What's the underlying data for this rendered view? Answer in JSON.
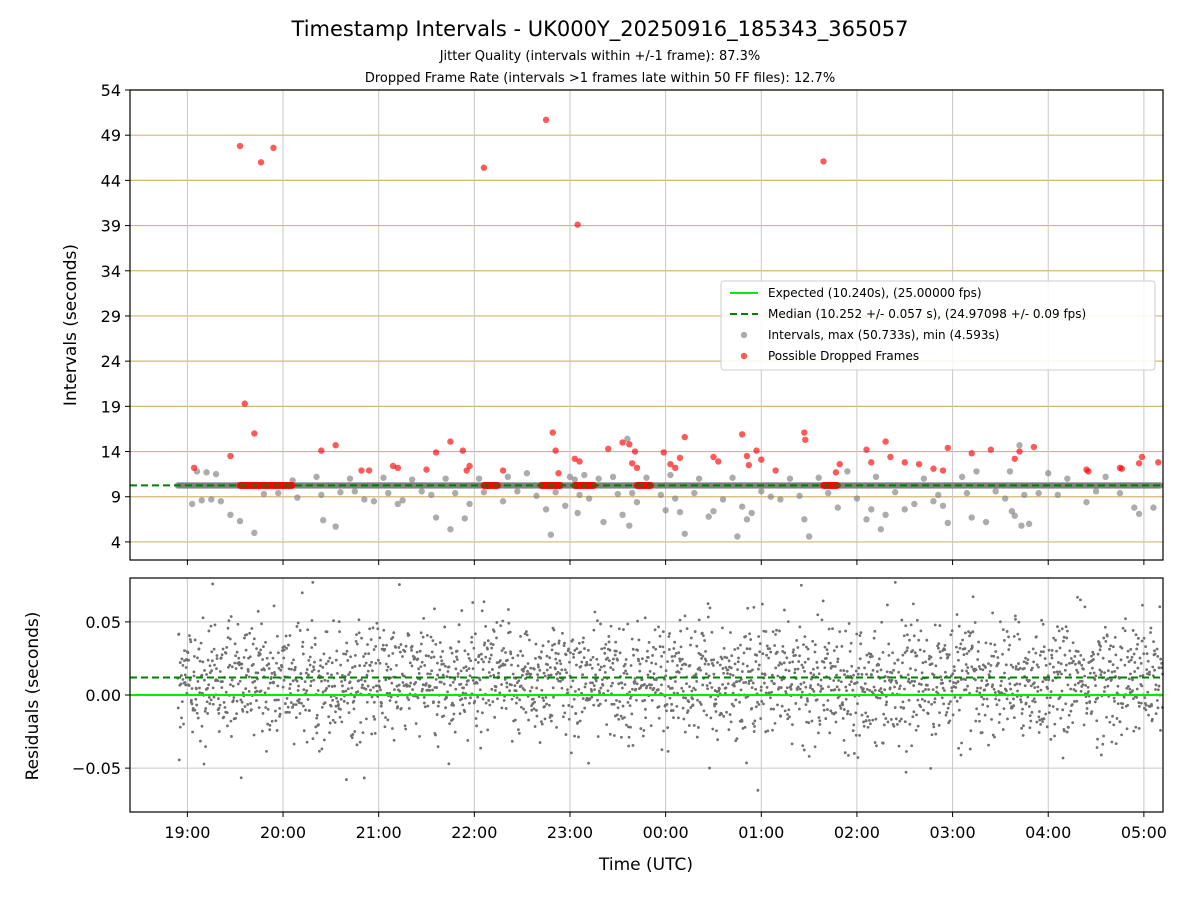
{
  "chart_data": [
    {
      "type": "scatter",
      "title": "Timestamp Intervals - UK000Y_20250916_185343_365057",
      "subtitle_lines": [
        "Jitter Quality (intervals within +/-1 frame): 87.3%",
        "Dropped Frame Rate (intervals >1 frames late within 50 FF files): 12.7%"
      ],
      "ylabel": "Intervals (seconds)",
      "ylim": [
        2,
        54
      ],
      "yticks": [
        4,
        9,
        14,
        19,
        24,
        29,
        34,
        39,
        44,
        49,
        54
      ],
      "xlim_hours": [
        18.4,
        29.2
      ],
      "grid": true,
      "legend_position": "center-right",
      "expected_interval": 10.24,
      "median_interval": 10.252,
      "colors": {
        "expected": "#00ee00",
        "median": "#008000",
        "intervals": "#808080",
        "dropped": "#ff0000",
        "hgrid": "#d4b870",
        "vgrid": "#c8c8c8"
      },
      "legend": [
        {
          "key": "expected",
          "label": "Expected (10.240s), (25.00000 fps)",
          "marker": "line"
        },
        {
          "key": "median",
          "label": "Median (10.252 +/- 0.057 s), (24.97098 +/- 0.09 fps)",
          "marker": "dash"
        },
        {
          "key": "intervals",
          "label": "Intervals, max (50.733s), min (4.593s)",
          "marker": "dot"
        },
        {
          "key": "dropped",
          "label": "Possible Dropped Frames",
          "marker": "dot"
        }
      ],
      "series": [
        {
          "name": "Intervals, max (50.733s), min (4.593s)",
          "points": [
            [
              19.05,
              8.2
            ],
            [
              19.1,
              11.8
            ],
            [
              19.15,
              8.6
            ],
            [
              19.2,
              11.7
            ],
            [
              19.25,
              8.7
            ],
            [
              19.3,
              11.5
            ],
            [
              19.35,
              8.5
            ],
            [
              19.45,
              7.0
            ],
            [
              19.55,
              6.3
            ],
            [
              19.7,
              5.0
            ],
            [
              19.8,
              9.3
            ],
            [
              19.95,
              9.4
            ],
            [
              20.1,
              10.8
            ],
            [
              20.15,
              8.9
            ],
            [
              20.35,
              11.2
            ],
            [
              20.4,
              9.2
            ],
            [
              20.42,
              6.4
            ],
            [
              20.55,
              5.7
            ],
            [
              20.6,
              9.5
            ],
            [
              20.7,
              11.0
            ],
            [
              20.75,
              9.6
            ],
            [
              20.85,
              8.7
            ],
            [
              20.95,
              8.5
            ],
            [
              21.05,
              11.1
            ],
            [
              21.1,
              9.4
            ],
            [
              21.2,
              8.2
            ],
            [
              21.25,
              8.6
            ],
            [
              21.35,
              10.9
            ],
            [
              21.45,
              9.6
            ],
            [
              21.55,
              9.2
            ],
            [
              21.6,
              6.7
            ],
            [
              21.7,
              11.0
            ],
            [
              21.75,
              5.4
            ],
            [
              21.8,
              9.4
            ],
            [
              21.9,
              6.6
            ],
            [
              21.95,
              8.2
            ],
            [
              22.05,
              11.0
            ],
            [
              22.1,
              9.5
            ],
            [
              22.3,
              8.5
            ],
            [
              22.35,
              11.2
            ],
            [
              22.45,
              9.6
            ],
            [
              22.55,
              11.6
            ],
            [
              22.65,
              9.1
            ],
            [
              22.75,
              7.6
            ],
            [
              22.8,
              4.8
            ],
            [
              22.85,
              9.5
            ],
            [
              22.95,
              8.0
            ],
            [
              23.0,
              11.2
            ],
            [
              23.05,
              10.9
            ],
            [
              23.08,
              7.2
            ],
            [
              23.1,
              9.2
            ],
            [
              23.15,
              11.4
            ],
            [
              23.2,
              8.8
            ],
            [
              23.3,
              11.0
            ],
            [
              23.35,
              6.2
            ],
            [
              23.45,
              11.2
            ],
            [
              23.5,
              9.3
            ],
            [
              23.55,
              7.0
            ],
            [
              23.6,
              15.4
            ],
            [
              23.62,
              5.8
            ],
            [
              23.65,
              9.4
            ],
            [
              23.7,
              8.4
            ],
            [
              23.8,
              11.1
            ],
            [
              23.95,
              9.2
            ],
            [
              24.0,
              7.5
            ],
            [
              24.05,
              11.4
            ],
            [
              24.1,
              8.8
            ],
            [
              24.15,
              7.3
            ],
            [
              24.2,
              4.9
            ],
            [
              24.3,
              9.4
            ],
            [
              24.35,
              11.0
            ],
            [
              24.45,
              6.8
            ],
            [
              24.5,
              7.4
            ],
            [
              24.6,
              8.7
            ],
            [
              24.7,
              11.1
            ],
            [
              24.75,
              4.6
            ],
            [
              24.8,
              7.9
            ],
            [
              24.85,
              6.5
            ],
            [
              24.9,
              7.2
            ],
            [
              25.0,
              9.6
            ],
            [
              25.1,
              9.0
            ],
            [
              25.2,
              8.7
            ],
            [
              25.3,
              11.0
            ],
            [
              25.4,
              9.1
            ],
            [
              25.45,
              6.5
            ],
            [
              25.5,
              4.6
            ],
            [
              25.6,
              11.1
            ],
            [
              25.7,
              9.4
            ],
            [
              25.8,
              7.8
            ],
            [
              25.9,
              11.8
            ],
            [
              26.0,
              8.8
            ],
            [
              26.1,
              6.5
            ],
            [
              26.15,
              7.6
            ],
            [
              26.2,
              11.2
            ],
            [
              26.25,
              5.4
            ],
            [
              26.3,
              7.0
            ],
            [
              26.4,
              9.5
            ],
            [
              26.5,
              7.6
            ],
            [
              26.6,
              8.2
            ],
            [
              26.7,
              11.0
            ],
            [
              26.8,
              8.5
            ],
            [
              26.85,
              9.2
            ],
            [
              26.9,
              8.0
            ],
            [
              26.95,
              6.1
            ],
            [
              27.1,
              11.2
            ],
            [
              27.15,
              9.4
            ],
            [
              27.2,
              6.7
            ],
            [
              27.25,
              11.8
            ],
            [
              27.35,
              6.2
            ],
            [
              27.45,
              9.6
            ],
            [
              27.55,
              8.8
            ],
            [
              27.6,
              11.8
            ],
            [
              27.62,
              7.4
            ],
            [
              27.65,
              6.9
            ],
            [
              27.7,
              14.7
            ],
            [
              27.72,
              5.8
            ],
            [
              27.75,
              9.2
            ],
            [
              27.8,
              6.0
            ],
            [
              27.9,
              9.4
            ],
            [
              28.0,
              11.6
            ],
            [
              28.1,
              9.2
            ],
            [
              28.2,
              11.0
            ],
            [
              28.4,
              8.4
            ],
            [
              28.5,
              9.6
            ],
            [
              28.6,
              11.2
            ],
            [
              28.75,
              9.4
            ],
            [
              28.9,
              7.8
            ],
            [
              28.95,
              7.1
            ],
            [
              29.1,
              7.8
            ]
          ]
        },
        {
          "name": "Possible Dropped Frames",
          "points": [
            [
              19.07,
              12.2
            ],
            [
              19.45,
              13.5
            ],
            [
              19.55,
              47.8
            ],
            [
              19.6,
              19.3
            ],
            [
              19.7,
              16.0
            ],
            [
              19.77,
              46.0
            ],
            [
              19.9,
              47.6
            ],
            [
              20.4,
              14.1
            ],
            [
              20.55,
              14.7
            ],
            [
              20.82,
              11.9
            ],
            [
              20.9,
              11.9
            ],
            [
              21.15,
              12.4
            ],
            [
              21.2,
              12.2
            ],
            [
              21.5,
              12.0
            ],
            [
              21.6,
              13.9
            ],
            [
              21.75,
              15.1
            ],
            [
              21.88,
              14.1
            ],
            [
              21.92,
              11.9
            ],
            [
              21.95,
              12.4
            ],
            [
              22.1,
              45.4
            ],
            [
              22.3,
              11.9
            ],
            [
              22.75,
              50.7
            ],
            [
              22.82,
              16.1
            ],
            [
              22.85,
              14.1
            ],
            [
              22.88,
              11.6
            ],
            [
              23.05,
              13.2
            ],
            [
              23.08,
              39.1
            ],
            [
              23.1,
              12.9
            ],
            [
              23.4,
              14.3
            ],
            [
              23.55,
              15.0
            ],
            [
              23.62,
              14.8
            ],
            [
              23.65,
              12.7
            ],
            [
              23.68,
              14.0
            ],
            [
              23.7,
              12.2
            ],
            [
              23.98,
              13.9
            ],
            [
              24.05,
              12.6
            ],
            [
              24.1,
              12.2
            ],
            [
              24.15,
              13.3
            ],
            [
              24.2,
              15.6
            ],
            [
              24.5,
              13.4
            ],
            [
              24.55,
              12.9
            ],
            [
              24.8,
              15.9
            ],
            [
              24.85,
              13.5
            ],
            [
              24.87,
              12.5
            ],
            [
              24.95,
              14.1
            ],
            [
              25.0,
              13.1
            ],
            [
              25.15,
              11.9
            ],
            [
              25.45,
              16.1
            ],
            [
              25.46,
              15.3
            ],
            [
              25.65,
              46.1
            ],
            [
              25.78,
              11.7
            ],
            [
              25.82,
              12.6
            ],
            [
              26.1,
              14.2
            ],
            [
              26.15,
              12.8
            ],
            [
              26.3,
              15.1
            ],
            [
              26.35,
              13.4
            ],
            [
              26.5,
              12.8
            ],
            [
              26.65,
              12.6
            ],
            [
              26.8,
              12.1
            ],
            [
              26.9,
              11.9
            ],
            [
              26.95,
              14.4
            ],
            [
              27.2,
              13.8
            ],
            [
              27.4,
              14.2
            ],
            [
              27.65,
              13.2
            ],
            [
              27.7,
              14.0
            ],
            [
              27.85,
              14.5
            ],
            [
              28.4,
              12.0
            ],
            [
              28.42,
              11.8
            ],
            [
              28.75,
              12.2
            ],
            [
              28.77,
              12.1
            ],
            [
              28.95,
              12.7
            ],
            [
              28.98,
              13.4
            ],
            [
              29.15,
              12.8
            ]
          ]
        }
      ],
      "dense_dropped_clusters_hours": [
        [
          19.55,
          20.1
        ],
        [
          22.1,
          22.25
        ],
        [
          22.7,
          22.9
        ],
        [
          23.05,
          23.25
        ],
        [
          23.7,
          23.85
        ],
        [
          25.65,
          25.8
        ]
      ]
    },
    {
      "type": "scatter",
      "ylabel": "Residuals (seconds)",
      "xlabel": "Time (UTC)",
      "ylim": [
        -0.08,
        0.08
      ],
      "yticks": [
        0.05,
        0.0,
        -0.05
      ],
      "ytick_labels": [
        "0.05",
        "0.00",
        "−0.05"
      ],
      "xticks_hours": [
        19,
        20,
        21,
        22,
        23,
        24,
        25,
        26,
        27,
        28,
        29
      ],
      "xtick_labels": [
        "19:00",
        "20:00",
        "21:00",
        "22:00",
        "23:00",
        "00:00",
        "01:00",
        "02:00",
        "03:00",
        "04:00",
        "05:00"
      ],
      "xlim_hours": [
        18.4,
        29.2
      ],
      "zero_line": 0.0,
      "median_line": 0.012,
      "residual_range_hours": [
        18.9,
        29.2
      ],
      "residual_mean": 0.01,
      "residual_spread": 0.02,
      "residual_sample_count": 2600
    }
  ]
}
